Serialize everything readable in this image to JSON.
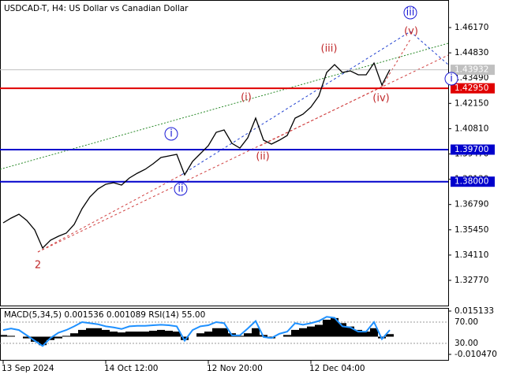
{
  "chart_data": [
    {
      "type": "line",
      "title": "USDCAD-T, H4:  US Dollar vs Canadian Dollar",
      "categories": [
        "13 Sep 2024",
        null,
        null,
        null,
        null,
        null,
        null,
        null,
        null,
        null,
        null,
        null,
        null,
        "14 Oct 12:00",
        null,
        null,
        null,
        null,
        null,
        null,
        null,
        null,
        null,
        null,
        null,
        null,
        "12 Nov 20:00",
        null,
        null,
        null,
        null,
        null,
        null,
        null,
        null,
        null,
        null,
        null,
        null,
        "12 Dec 04:00",
        null,
        null,
        null,
        null,
        null,
        null,
        null,
        null,
        null,
        null
      ],
      "series": [
        {
          "color": "#000000",
          "values": [
            1.35817,
            1.36068,
            1.36276,
            1.35942,
            1.35441,
            1.34481,
            1.34899,
            1.35108,
            1.35274,
            1.35734,
            1.36569,
            1.37195,
            1.37612,
            1.37863,
            1.37946,
            1.37821,
            1.38197,
            1.38447,
            1.38656,
            1.38948,
            1.39282,
            1.39366,
            1.39449,
            1.38364,
            1.39073,
            1.39491,
            1.39908,
            1.40618,
            1.40743,
            1.40033,
            1.39783,
            1.40326,
            1.41369,
            1.402,
            1.39992,
            1.402,
            1.40451,
            1.41369,
            1.41578,
            1.41954,
            1.42538,
            1.43791,
            1.44208,
            1.43791,
            1.43874,
            1.43665,
            1.43665,
            1.44291,
            1.43123,
            1.43932
          ]
        }
      ],
      "ylim": [
        1.31434,
        1.47631
      ],
      "yticks": [
        {
          "value": 1.4617,
          "label": "1.46170"
        },
        {
          "value": 1.4483,
          "label": "1.44830"
        },
        {
          "value": 1.4349,
          "label": "1.43490"
        },
        {
          "value": 1.4215,
          "label": "1.42150"
        },
        {
          "value": 1.4081,
          "label": "1.40810"
        },
        {
          "value": 1.3947,
          "label": "1.39470"
        },
        {
          "value": 1.3813,
          "label": "1.38130"
        },
        {
          "value": 1.3679,
          "label": "1.36790"
        },
        {
          "value": 1.3545,
          "label": "1.35450"
        },
        {
          "value": 1.3411,
          "label": "1.34110"
        },
        {
          "value": 1.3277,
          "label": "1.32770"
        }
      ],
      "levels": [
        {
          "value": 1.43932,
          "label": "1.43932",
          "color": "#c0c0c0"
        },
        {
          "value": 1.4295,
          "label": "1.42950",
          "color": "#e00000"
        },
        {
          "value": 1.397,
          "label": "1.39700",
          "color": "#0000cc"
        },
        {
          "value": 1.38,
          "label": "1.38000",
          "color": "#0000cc"
        }
      ],
      "annotations": [
        {
          "text": "2",
          "color": "#c0282a",
          "circled": false
        },
        {
          "text": "i",
          "color": "#1a1ad6",
          "circled": true
        },
        {
          "text": "ii",
          "color": "#1a1ad6",
          "circled": true
        },
        {
          "text": "iii",
          "color": "#1a1ad6",
          "circled": true
        },
        {
          "text": "i",
          "color": "#1a1ad6",
          "circled": true
        },
        {
          "text": "(i)",
          "color": "#c0282a",
          "circled": false
        },
        {
          "text": "(ii)",
          "color": "#c0282a",
          "circled": false
        },
        {
          "text": "(iii)",
          "color": "#c0282a",
          "circled": false
        },
        {
          "text": "(iv)",
          "color": "#c0282a",
          "circled": false
        },
        {
          "text": "(v)",
          "color": "#c0282a",
          "circled": false
        }
      ]
    },
    {
      "type": "bar",
      "title": "MACD(5,34,5) 0.001536 0.001089 RSI(14) 55.00",
      "values": [
        0.001,
        0.0005,
        0,
        -0.001,
        -0.003,
        -0.005,
        -0.002,
        -0.001,
        0.0005,
        0.002,
        0.004,
        0.005,
        0.005,
        0.004,
        0.003,
        0.0025,
        0.003,
        0.003,
        0.003,
        0.0035,
        0.004,
        0.0035,
        0.003,
        -0.002,
        0,
        0.002,
        0.003,
        0.005,
        0.005,
        0.002,
        0.0005,
        0.002,
        0.005,
        0.001,
        -0.001,
        0,
        0.001,
        0.004,
        0.005,
        0.006,
        0.007,
        0.01,
        0.011,
        0.008,
        0.006,
        0.004,
        0.003,
        0.005,
        -0.001,
        0.0015
      ],
      "color": "#000000",
      "ylim": [
        -0.01047,
        0.015133
      ],
      "yticks": [
        0.015133,
        {
          "value": -0.01047,
          "label": "-0.010470"
        }
      ],
      "line": {
        "color": "#1e90ff",
        "axis": "y2",
        "values": [
          55,
          58,
          55,
          45,
          35,
          25,
          40,
          50,
          55,
          62,
          70,
          68,
          66,
          62,
          60,
          57,
          62,
          63,
          63,
          64,
          65,
          64,
          62,
          35,
          55,
          62,
          64,
          70,
          68,
          45,
          45,
          58,
          72,
          42,
          40,
          48,
          52,
          68,
          65,
          68,
          72,
          80,
          78,
          62,
          60,
          52,
          52,
          70,
          38,
          55
        ]
      },
      "y2lim": [
        0,
        100
      ],
      "y2ticks": [
        {
          "value": 70,
          "label": "70.00"
        },
        {
          "value": 30,
          "label": "30.00"
        }
      ]
    }
  ]
}
